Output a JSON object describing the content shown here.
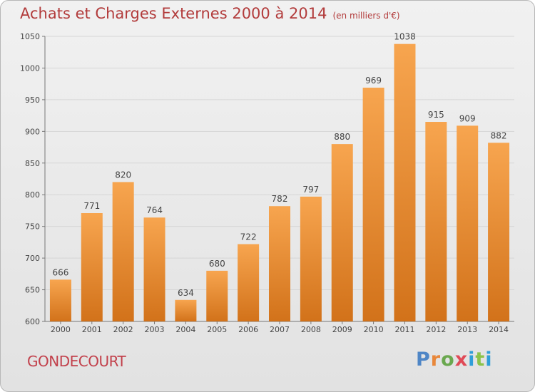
{
  "header": {
    "title": "Achats et Charges Externes 2000 à 2014",
    "subtitle": "(en milliers d'€)"
  },
  "footer": {
    "location": "GONDECOURT",
    "logo_text": "Proxiti"
  },
  "colors": {
    "bar_light": "#f7a54f",
    "bar_dark": "#d2721a",
    "title": "#b23b3b"
  },
  "chart_data": {
    "type": "bar",
    "categories": [
      "2000",
      "2001",
      "2002",
      "2003",
      "2004",
      "2005",
      "2006",
      "2007",
      "2008",
      "2009",
      "2010",
      "2011",
      "2012",
      "2013",
      "2014"
    ],
    "values": [
      666,
      771,
      820,
      764,
      634,
      680,
      722,
      782,
      797,
      880,
      969,
      1038,
      915,
      909,
      882
    ],
    "title": "Achats et Charges Externes 2000 à 2014",
    "xlabel": "",
    "ylabel": "",
    "ylim": [
      600,
      1050
    ],
    "yticks": [
      600,
      650,
      700,
      750,
      800,
      850,
      900,
      950,
      1000,
      1050
    ],
    "grid": true,
    "legend": "none"
  }
}
